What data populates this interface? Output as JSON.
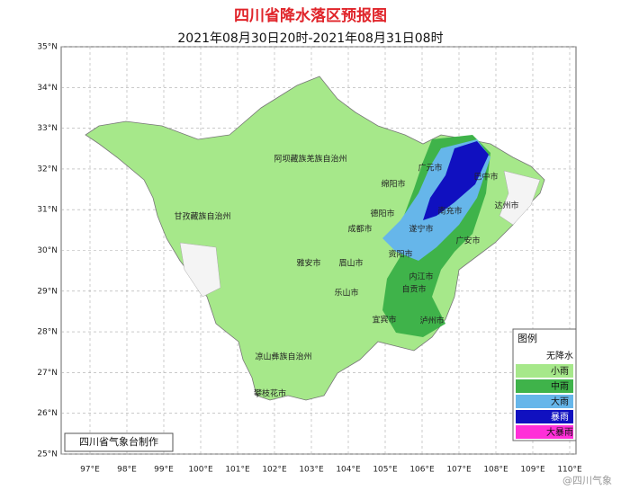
{
  "header": {
    "title": "四川省降水落区预报图",
    "subtitle": "2021年08月30日20时-2021年08月31日08时"
  },
  "axes": {
    "lat_labels": [
      "35°N",
      "34°N",
      "33°N",
      "32°N",
      "31°N",
      "30°N",
      "29°N",
      "28°N",
      "27°N",
      "26°N",
      "25°N"
    ],
    "lon_labels": [
      "97°E",
      "98°E",
      "99°E",
      "100°E",
      "101°E",
      "102°E",
      "103°E",
      "104°E",
      "105°E",
      "106°E",
      "107°E",
      "108°E",
      "109°E",
      "110°E"
    ]
  },
  "cities": [
    "阿坝藏族羌族自治州",
    "甘孜藏族自治州",
    "广元市",
    "巴中市",
    "绵阳市",
    "达州市",
    "德阳市",
    "南充市",
    "成都市",
    "遂宁市",
    "广安市",
    "资阳市",
    "雅安市",
    "眉山市",
    "内江市",
    "乐山市",
    "自贡市",
    "宜宾市",
    "泸州市",
    "凉山彝族自治州",
    "攀枝花市"
  ],
  "legend": {
    "title": "图例",
    "items": [
      "无降水",
      "小雨",
      "中雨",
      "大雨",
      "暴雨",
      "大暴雨"
    ]
  },
  "credit": "四川省气象台制作",
  "watermark": "@四川气象"
}
